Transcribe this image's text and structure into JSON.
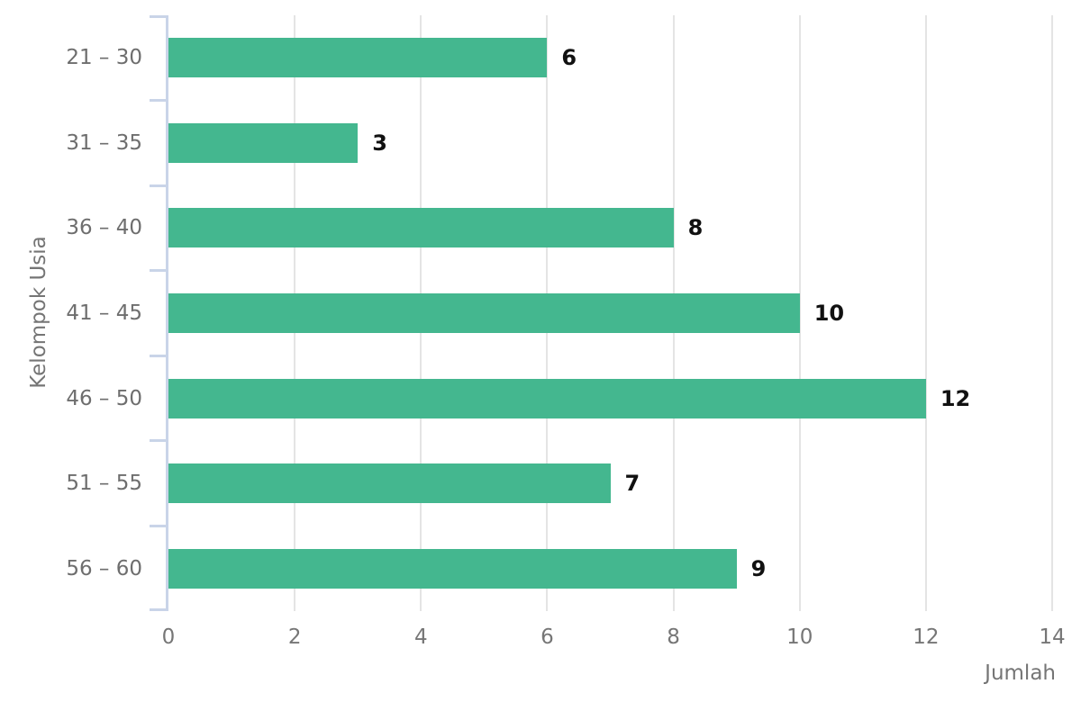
{
  "chart_data": {
    "type": "bar",
    "orientation": "horizontal",
    "title": "",
    "categories": [
      "21 – 30",
      "31 – 35",
      "36 – 40",
      "41 – 45",
      "46 – 50",
      "51 – 55",
      "56 – 60"
    ],
    "values": [
      6,
      3,
      8,
      10,
      12,
      7,
      9
    ],
    "xlabel": "Jumlah",
    "ylabel": "Kelompok Usia",
    "xlim": [
      0,
      14
    ],
    "xticks": [
      0,
      2,
      4,
      6,
      8,
      10,
      12,
      14
    ],
    "grid": true,
    "legend": "none",
    "value_labels_shown": true,
    "colors": {
      "bar": "#44b78f",
      "axis_line": "#c9d4e8",
      "gridline": "#e4e4e4",
      "category_label": "#6e6e6e",
      "tick_label": "#767676",
      "axis_title": "#757575",
      "value_label": "#111111",
      "background": "#ffffff"
    }
  }
}
